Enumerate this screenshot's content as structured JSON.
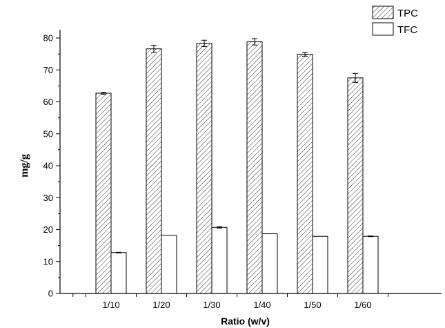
{
  "chart_data": {
    "type": "bar",
    "xlabel": "Ratio (w/v)",
    "ylabel": "mg/g",
    "ylim": [
      0,
      80
    ],
    "yticks": [
      0,
      10,
      20,
      30,
      40,
      50,
      60,
      70,
      80
    ],
    "categories": [
      "1/10",
      "1/20",
      "1/30",
      "1/40",
      "1/50",
      "1/60"
    ],
    "series": [
      {
        "name": "TPC",
        "pattern": "diagonal-hatch",
        "values": [
          62.7,
          76.6,
          78.3,
          78.8,
          74.9,
          67.5
        ],
        "errors": [
          0.3,
          1.1,
          1.0,
          1.0,
          0.6,
          1.4
        ]
      },
      {
        "name": "TFC",
        "pattern": "none",
        "values": [
          12.8,
          18.2,
          20.7,
          18.7,
          17.9,
          17.9
        ],
        "errors": [
          0.1,
          0.0,
          0.2,
          0.0,
          0.0,
          0.1
        ]
      }
    ],
    "legend": "top-right",
    "grid": false
  }
}
